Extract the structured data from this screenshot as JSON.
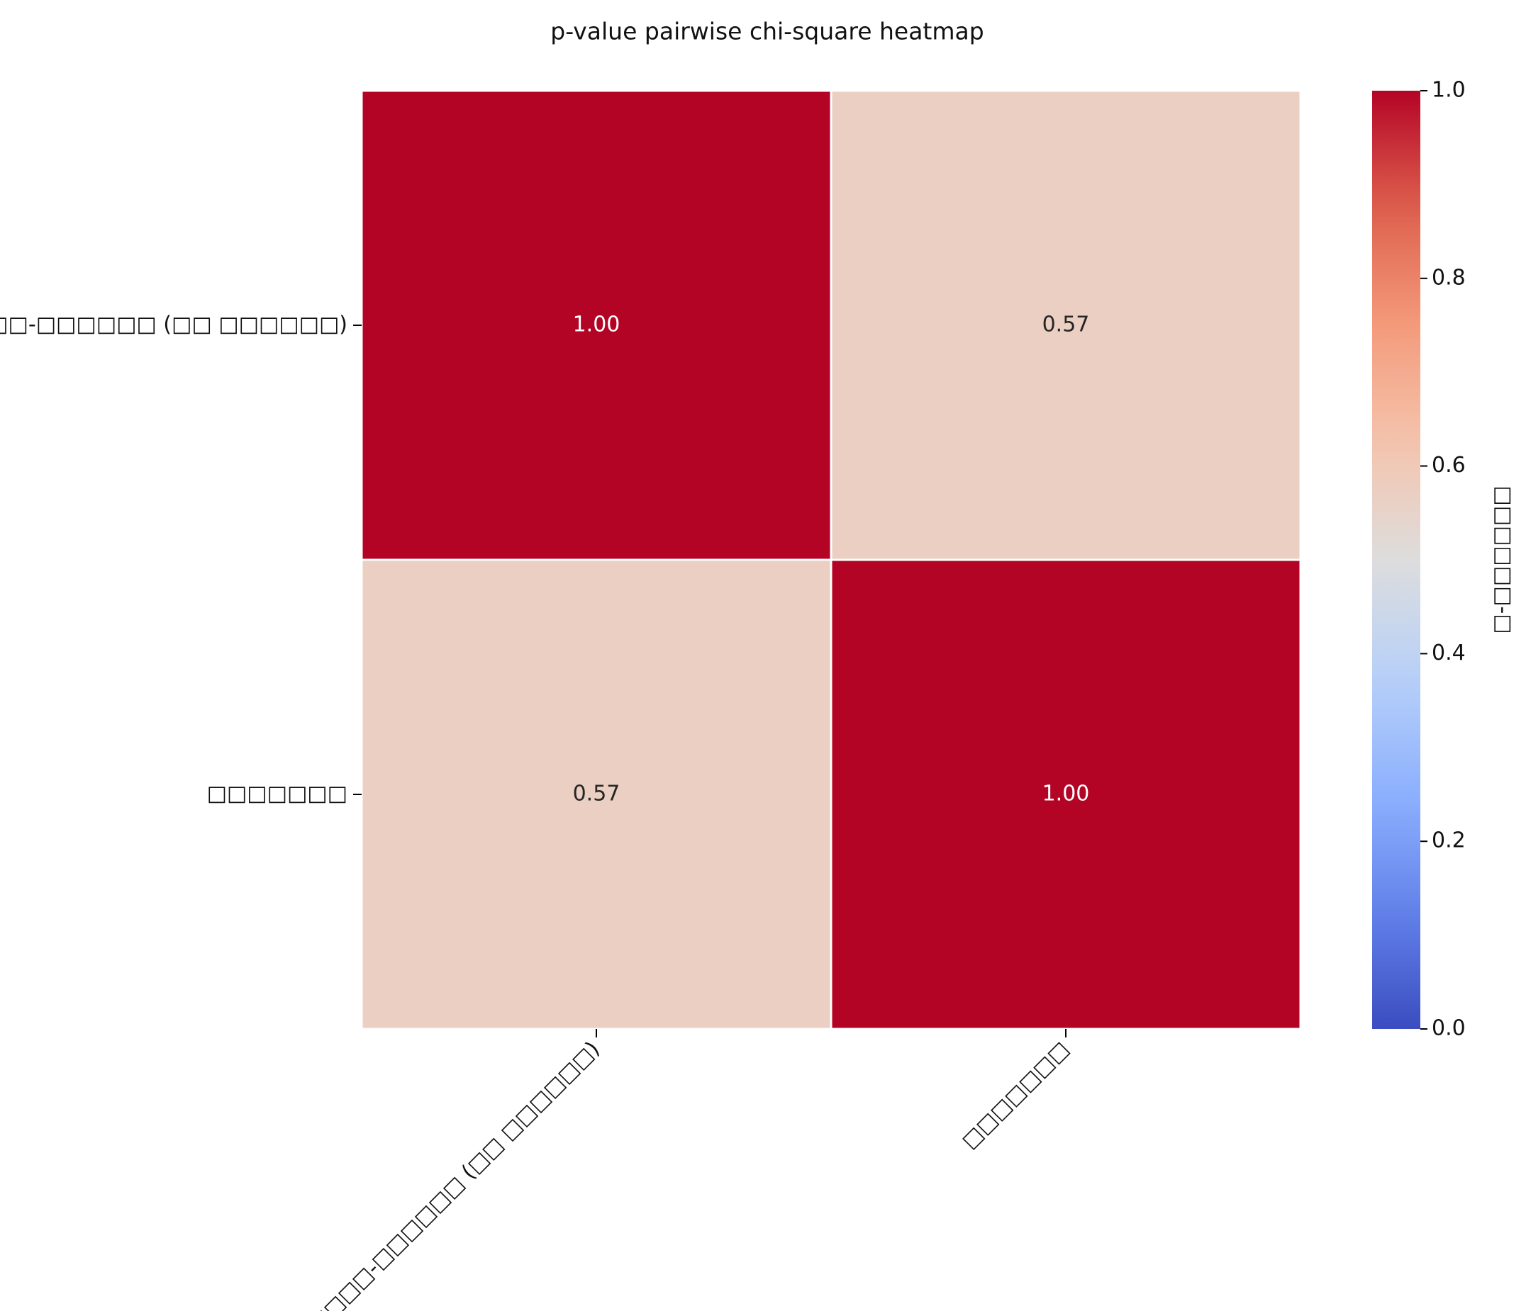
{
  "chart_data": {
    "type": "heatmap",
    "title": "p-value pairwise chi-square heatmap",
    "x_categories": [
      "□□□□-□□□□□□ (□□ □□□□□□)",
      "□□□□□□□"
    ],
    "y_categories": [
      "□□□□-□□□□□□ (□□ □□□□□□)",
      "□□□□□□□"
    ],
    "z": [
      [
        1.0,
        0.57
      ],
      [
        0.57,
        1.0
      ]
    ],
    "value_labels": [
      [
        "1.00",
        "0.57"
      ],
      [
        "0.57",
        "1.00"
      ]
    ],
    "colormap": "coolwarm",
    "colorbar_label": "□-□□□□□□",
    "zlim": [
      0,
      1
    ],
    "zticks": [
      {
        "value": 0,
        "label": "0.0"
      },
      {
        "value": 0.2,
        "label": "0.2"
      },
      {
        "value": 0.4,
        "label": "0.4"
      },
      {
        "value": 0.6,
        "label": "0.6"
      },
      {
        "value": 0.8,
        "label": "0.8"
      },
      {
        "value": 1,
        "label": "1.0"
      }
    ]
  }
}
